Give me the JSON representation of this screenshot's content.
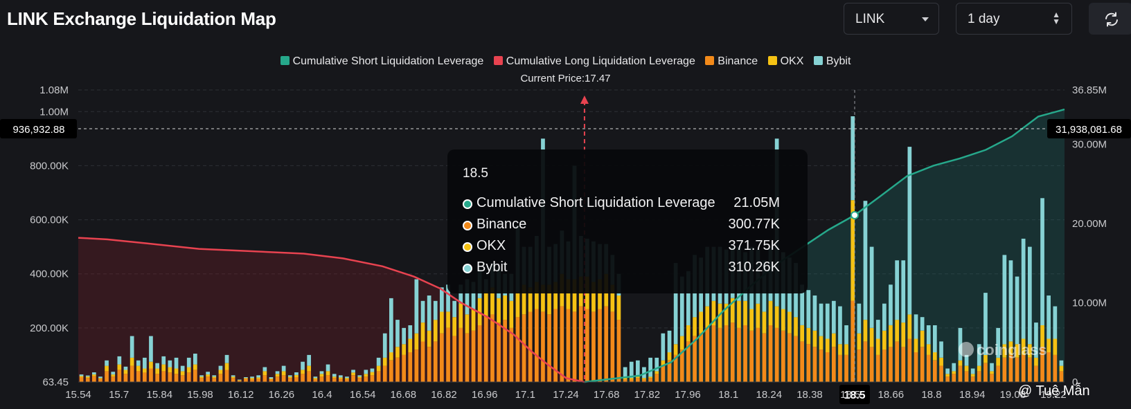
{
  "header": {
    "title": "LINK Exchange Liquidation Map",
    "symbol_select": "LINK",
    "interval_select": "1 day"
  },
  "legend": {
    "items": [
      {
        "label": "Cumulative Short Liquidation Leverage",
        "color": "#26a88b"
      },
      {
        "label": "Cumulative Long Liquidation Leverage",
        "color": "#e84350"
      },
      {
        "label": "Binance",
        "color": "#f28a1a"
      },
      {
        "label": "OKX",
        "color": "#f5c214"
      },
      {
        "label": "Bybit",
        "color": "#86d2d4"
      }
    ]
  },
  "current_price_label": "Current Price:17.47",
  "crosshair": {
    "left_value": "936,932.88",
    "right_value": "31,938,081.68",
    "x_value": "18.5"
  },
  "tooltip": {
    "title": "18.5",
    "rows": [
      {
        "label": "Cumulative Short Liquidation Leverage",
        "value": "21.05M",
        "color": "#26a88b"
      },
      {
        "label": "Binance",
        "value": "300.77K",
        "color": "#f28a1a"
      },
      {
        "label": "OKX",
        "value": "371.75K",
        "color": "#f5c214"
      },
      {
        "label": "Bybit",
        "value": "310.26K",
        "color": "#86d2d4"
      }
    ]
  },
  "watermark": "coinglass",
  "credit": "@ Tuệ Mẫn",
  "chart_data": {
    "type": "bar",
    "title": "LINK Exchange Liquidation Map",
    "current_price": 17.47,
    "x_tick_labels": [
      "15.54",
      "15.7",
      "15.84",
      "15.98",
      "16.12",
      "16.26",
      "16.4",
      "16.54",
      "16.68",
      "16.82",
      "16.96",
      "17.1",
      "17.24",
      "17.68",
      "17.82",
      "17.96",
      "18.1",
      "18.24",
      "18.38",
      "18.5",
      "18.66",
      "18.8",
      "18.94",
      "19.08",
      "19.22"
    ],
    "y_left_ticks": [
      "63.45",
      "200.00K",
      "400.00K",
      "600.00K",
      "800.00K",
      "1.00M",
      "1.08M"
    ],
    "y_left_range": [
      63.45,
      1080000
    ],
    "y_right_ticks": [
      "0",
      "10.00M",
      "20.00M",
      "30.00M",
      "36.85M"
    ],
    "y_right_range": [
      0,
      36850000
    ],
    "price_range": [
      15.54,
      19.3
    ],
    "bar_count": 160,
    "bar_stacks": [
      "Binance",
      "OKX",
      "Bybit"
    ],
    "bars": [
      {
        "b": 18000,
        "o": 4000,
        "y": 6000
      },
      {
        "b": 15000,
        "o": 5000,
        "y": 4000
      },
      {
        "b": 22000,
        "o": 6000,
        "y": 8000
      },
      {
        "b": 12000,
        "o": 3000,
        "y": 5000
      },
      {
        "b": 40000,
        "o": 20000,
        "y": 20000
      },
      {
        "b": 20000,
        "o": 8000,
        "y": 10000
      },
      {
        "b": 45000,
        "o": 20000,
        "y": 30000
      },
      {
        "b": 30000,
        "o": 15000,
        "y": 12000
      },
      {
        "b": 60000,
        "o": 30000,
        "y": 80000
      },
      {
        "b": 40000,
        "o": 20000,
        "y": 20000
      },
      {
        "b": 35000,
        "o": 15000,
        "y": 40000
      },
      {
        "b": 50000,
        "o": 25000,
        "y": 95000
      },
      {
        "b": 30000,
        "o": 20000,
        "y": 20000
      },
      {
        "b": 40000,
        "o": 25000,
        "y": 30000
      },
      {
        "b": 35000,
        "o": 20000,
        "y": 25000
      },
      {
        "b": 30000,
        "o": 20000,
        "y": 40000
      },
      {
        "b": 25000,
        "o": 15000,
        "y": 20000
      },
      {
        "b": 35000,
        "o": 20000,
        "y": 35000
      },
      {
        "b": 45000,
        "o": 20000,
        "y": 40000
      },
      {
        "b": 15000,
        "o": 5000,
        "y": 5000
      },
      {
        "b": 20000,
        "o": 8000,
        "y": 10000
      },
      {
        "b": 15000,
        "o": 5000,
        "y": 5000
      },
      {
        "b": 30000,
        "o": 15000,
        "y": 15000
      },
      {
        "b": 45000,
        "o": 25000,
        "y": 30000
      },
      {
        "b": 15000,
        "o": 5000,
        "y": 5000
      },
      {
        "b": 5000,
        "o": 2000,
        "y": 2000
      },
      {
        "b": 12000,
        "o": 3000,
        "y": 3000
      },
      {
        "b": 10000,
        "o": 5000,
        "y": 5000
      },
      {
        "b": 12000,
        "o": 5000,
        "y": 8000
      },
      {
        "b": 25000,
        "o": 15000,
        "y": 15000
      },
      {
        "b": 10000,
        "o": 3000,
        "y": 5000
      },
      {
        "b": 20000,
        "o": 10000,
        "y": 10000
      },
      {
        "b": 25000,
        "o": 15000,
        "y": 20000
      },
      {
        "b": 15000,
        "o": 5000,
        "y": 5000
      },
      {
        "b": 18000,
        "o": 8000,
        "y": 10000
      },
      {
        "b": 30000,
        "o": 15000,
        "y": 30000
      },
      {
        "b": 40000,
        "o": 20000,
        "y": 40000
      },
      {
        "b": 10000,
        "o": 5000,
        "y": 5000
      },
      {
        "b": 20000,
        "o": 10000,
        "y": 10000
      },
      {
        "b": 25000,
        "o": 15000,
        "y": 25000
      },
      {
        "b": 15000,
        "o": 5000,
        "y": 10000
      },
      {
        "b": 12000,
        "o": 5000,
        "y": 8000
      },
      {
        "b": 10000,
        "o": 5000,
        "y": 5000
      },
      {
        "b": 25000,
        "o": 10000,
        "y": 10000
      },
      {
        "b": 15000,
        "o": 5000,
        "y": 5000
      },
      {
        "b": 20000,
        "o": 10000,
        "y": 15000
      },
      {
        "b": 25000,
        "o": 12000,
        "y": 13000
      },
      {
        "b": 40000,
        "o": 20000,
        "y": 30000
      },
      {
        "b": 60000,
        "o": 30000,
        "y": 90000
      },
      {
        "b": 80000,
        "o": 30000,
        "y": 200000
      },
      {
        "b": 90000,
        "o": 40000,
        "y": 100000
      },
      {
        "b": 100000,
        "o": 40000,
        "y": 60000
      },
      {
        "b": 110000,
        "o": 50000,
        "y": 50000
      },
      {
        "b": 120000,
        "o": 60000,
        "y": 200000
      },
      {
        "b": 150000,
        "o": 70000,
        "y": 80000
      },
      {
        "b": 130000,
        "o": 60000,
        "y": 130000
      },
      {
        "b": 150000,
        "o": 80000,
        "y": 70000
      },
      {
        "b": 180000,
        "o": 80000,
        "y": 90000
      },
      {
        "b": 200000,
        "o": 60000,
        "y": 100000
      },
      {
        "b": 170000,
        "o": 70000,
        "y": 60000
      },
      {
        "b": 200000,
        "o": 90000,
        "y": 70000
      },
      {
        "b": 180000,
        "o": 70000,
        "y": 130000
      },
      {
        "b": 190000,
        "o": 80000,
        "y": 100000
      },
      {
        "b": 210000,
        "o": 100000,
        "y": 110000
      },
      {
        "b": 240000,
        "o": 90000,
        "y": 50000
      },
      {
        "b": 250000,
        "o": 100000,
        "y": 90000
      },
      {
        "b": 220000,
        "o": 90000,
        "y": 110000
      },
      {
        "b": 230000,
        "o": 90000,
        "y": 80000
      },
      {
        "b": 200000,
        "o": 100000,
        "y": 100000
      },
      {
        "b": 240000,
        "o": 90000,
        "y": 250000
      },
      {
        "b": 250000,
        "o": 110000,
        "y": 140000
      },
      {
        "b": 260000,
        "o": 90000,
        "y": 150000
      },
      {
        "b": 270000,
        "o": 100000,
        "y": 170000
      },
      {
        "b": 260000,
        "o": 100000,
        "y": 540000
      },
      {
        "b": 250000,
        "o": 110000,
        "y": 140000
      },
      {
        "b": 270000,
        "o": 100000,
        "y": 140000
      },
      {
        "b": 280000,
        "o": 120000,
        "y": 160000
      },
      {
        "b": 270000,
        "o": 110000,
        "y": 140000
      },
      {
        "b": 260000,
        "o": 120000,
        "y": 420000
      },
      {
        "b": 280000,
        "o": 110000,
        "y": 150000
      },
      {
        "b": 270000,
        "o": 120000,
        "y": 140000
      },
      {
        "b": 260000,
        "o": 110000,
        "y": 150000
      },
      {
        "b": 270000,
        "o": 110000,
        "y": 130000
      },
      {
        "b": 280000,
        "o": 120000,
        "y": 110000
      },
      {
        "b": 260000,
        "o": 100000,
        "y": 110000
      },
      {
        "b": 230000,
        "o": 90000,
        "y": 80000
      },
      {
        "b": 10000,
        "o": 5000,
        "y": 40000
      },
      {
        "b": 10000,
        "o": 5000,
        "y": 60000
      },
      {
        "b": 15000,
        "o": 5000,
        "y": 60000
      },
      {
        "b": 10000,
        "o": 5000,
        "y": 40000
      },
      {
        "b": 15000,
        "o": 5000,
        "y": 70000
      },
      {
        "b": 30000,
        "o": 10000,
        "y": 50000
      },
      {
        "b": 60000,
        "o": 20000,
        "y": 100000
      },
      {
        "b": 80000,
        "o": 30000,
        "y": 80000
      },
      {
        "b": 100000,
        "o": 40000,
        "y": 300000
      },
      {
        "b": 120000,
        "o": 50000,
        "y": 220000
      },
      {
        "b": 150000,
        "o": 60000,
        "y": 200000
      },
      {
        "b": 170000,
        "o": 70000,
        "y": 230000
      },
      {
        "b": 180000,
        "o": 80000,
        "y": 200000
      },
      {
        "b": 200000,
        "o": 80000,
        "y": 220000
      },
      {
        "b": 210000,
        "o": 90000,
        "y": 200000
      },
      {
        "b": 200000,
        "o": 90000,
        "y": 210000
      },
      {
        "b": 210000,
        "o": 80000,
        "y": 200000
      },
      {
        "b": 220000,
        "o": 90000,
        "y": 190000
      },
      {
        "b": 200000,
        "o": 100000,
        "y": 200000
      },
      {
        "b": 210000,
        "o": 90000,
        "y": 180000
      },
      {
        "b": 190000,
        "o": 80000,
        "y": 230000
      },
      {
        "b": 200000,
        "o": 90000,
        "y": 200000
      },
      {
        "b": 180000,
        "o": 80000,
        "y": 190000
      },
      {
        "b": 210000,
        "o": 90000,
        "y": 200000
      },
      {
        "b": 200000,
        "o": 80000,
        "y": 620000
      },
      {
        "b": 190000,
        "o": 80000,
        "y": 210000
      },
      {
        "b": 180000,
        "o": 80000,
        "y": 200000
      },
      {
        "b": 170000,
        "o": 70000,
        "y": 200000
      },
      {
        "b": 150000,
        "o": 60000,
        "y": 150000
      },
      {
        "b": 140000,
        "o": 60000,
        "y": 140000
      },
      {
        "b": 130000,
        "o": 60000,
        "y": 130000
      },
      {
        "b": 120000,
        "o": 50000,
        "y": 120000
      },
      {
        "b": 110000,
        "o": 50000,
        "y": 130000
      },
      {
        "b": 130000,
        "o": 50000,
        "y": 120000
      },
      {
        "b": 100000,
        "o": 40000,
        "y": 140000
      },
      {
        "b": 100000,
        "o": 40000,
        "y": 70000
      },
      {
        "b": 300770,
        "o": 371750,
        "y": 310260
      },
      {
        "b": 120000,
        "o": 60000,
        "y": 110000
      },
      {
        "b": 150000,
        "o": 80000,
        "y": 440000
      },
      {
        "b": 130000,
        "o": 70000,
        "y": 300000
      },
      {
        "b": 100000,
        "o": 60000,
        "y": 70000
      },
      {
        "b": 120000,
        "o": 70000,
        "y": 100000
      },
      {
        "b": 130000,
        "o": 80000,
        "y": 150000
      },
      {
        "b": 150000,
        "o": 80000,
        "y": 220000
      },
      {
        "b": 130000,
        "o": 90000,
        "y": 230000
      },
      {
        "b": 160000,
        "o": 90000,
        "y": 620000
      },
      {
        "b": 110000,
        "o": 50000,
        "y": 90000
      },
      {
        "b": 130000,
        "o": 60000,
        "y": 50000
      },
      {
        "b": 100000,
        "o": 40000,
        "y": 70000
      },
      {
        "b": 80000,
        "o": 30000,
        "y": 100000
      },
      {
        "b": 60000,
        "o": 30000,
        "y": 60000
      },
      {
        "b": 20000,
        "o": 10000,
        "y": 20000
      },
      {
        "b": 30000,
        "o": 10000,
        "y": 30000
      },
      {
        "b": 60000,
        "o": 20000,
        "y": 120000
      },
      {
        "b": 40000,
        "o": 20000,
        "y": 40000
      },
      {
        "b": 20000,
        "o": 10000,
        "y": 20000
      },
      {
        "b": 40000,
        "o": 20000,
        "y": 80000
      },
      {
        "b": 70000,
        "o": 30000,
        "y": 230000
      },
      {
        "b": 30000,
        "o": 10000,
        "y": 30000
      },
      {
        "b": 60000,
        "o": 30000,
        "y": 110000
      },
      {
        "b": 90000,
        "o": 50000,
        "y": 330000
      },
      {
        "b": 100000,
        "o": 50000,
        "y": 300000
      },
      {
        "b": 90000,
        "o": 50000,
        "y": 250000
      },
      {
        "b": 100000,
        "o": 60000,
        "y": 370000
      },
      {
        "b": 90000,
        "o": 50000,
        "y": 360000
      },
      {
        "b": 60000,
        "o": 30000,
        "y": 130000
      },
      {
        "b": 130000,
        "o": 80000,
        "y": 470000
      },
      {
        "b": 110000,
        "o": 50000,
        "y": 160000
      },
      {
        "b": 100000,
        "o": 60000,
        "y": 120000
      },
      {
        "b": 40000,
        "o": 20000,
        "y": 20000
      }
    ],
    "long_cumulative": {
      "x": [
        15.54,
        15.65,
        15.8,
        16.0,
        16.2,
        16.4,
        16.55,
        16.7,
        16.82,
        16.92,
        17.0,
        17.1,
        17.2,
        17.27,
        17.33,
        17.4,
        17.47
      ],
      "y": [
        18200000,
        18000000,
        17500000,
        16800000,
        16500000,
        16200000,
        15600000,
        14600000,
        13300000,
        11800000,
        10000000,
        8200000,
        6000000,
        3800000,
        2200000,
        500000,
        0
      ]
    },
    "short_cumulative": {
      "x": [
        17.47,
        17.68,
        17.8,
        17.9,
        18.0,
        18.1,
        18.2,
        18.3,
        18.4,
        18.5,
        18.6,
        18.7,
        18.8,
        18.9,
        19.0,
        19.1,
        19.2,
        19.3
      ],
      "y": [
        0,
        800000,
        2500000,
        5500000,
        9000000,
        12000000,
        14800000,
        17000000,
        19200000,
        21050000,
        23500000,
        26000000,
        27300000,
        28200000,
        29300000,
        31000000,
        33500000,
        34400000
      ]
    }
  }
}
